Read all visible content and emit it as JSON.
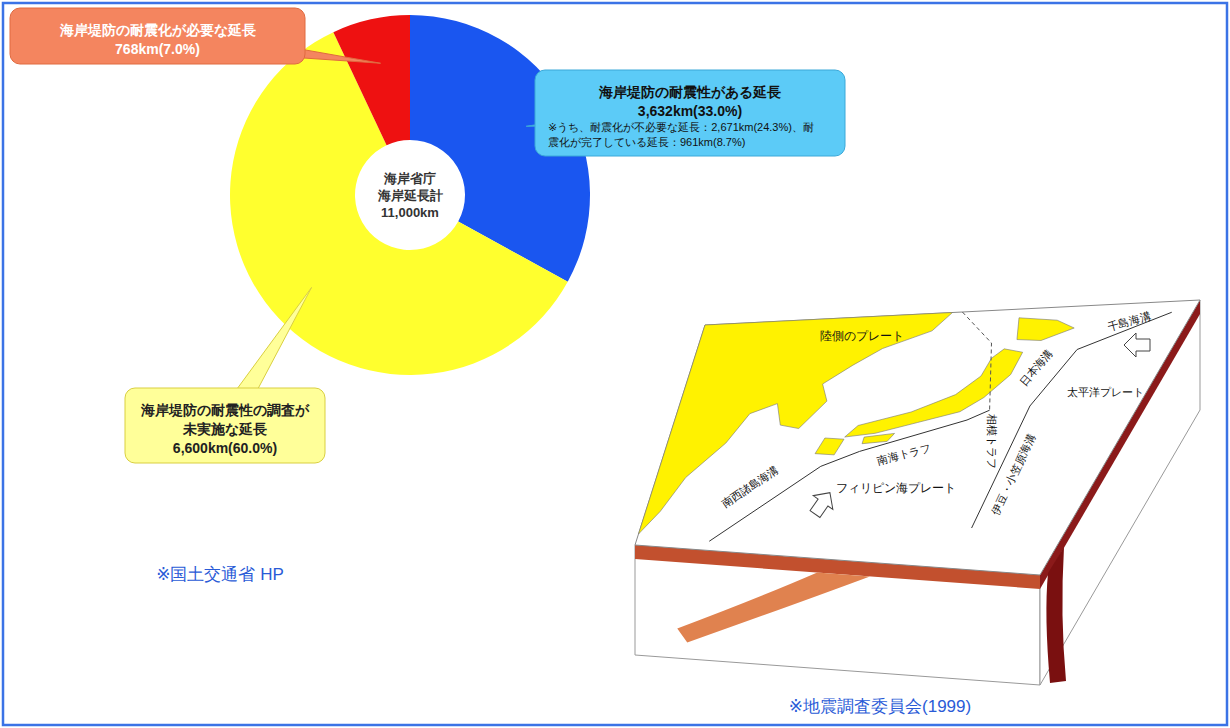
{
  "chart_data": {
    "type": "donut",
    "categories": [
      "海岸堤防の耐震性がある延長",
      "海岸堤防の耐震性の調査が未実施な延長",
      "海岸堤防の耐震化が必要な延長"
    ],
    "values": [
      33.0,
      60.0,
      7.0
    ],
    "value_labels": [
      "3,632km(33.0%)",
      "6,600km(60.0%)",
      "768km(7.0%)"
    ],
    "colors": [
      "#1a56f0",
      "#ffff2e",
      "#ee1111"
    ],
    "data_labels": true,
    "note": "※うち、耐震化が不必要な延長：2,671km(24.3%)、耐震化が完了している延長：961km(8.7%)",
    "center_text": [
      "海岸省庁",
      "海岸延長計",
      "11,000km"
    ],
    "source": "※国土交通省 HP"
  },
  "diagram": {
    "plates": {
      "continental": "陸側のプレート",
      "pacific": "太平洋プレート",
      "philippine": "フィリピン海プレート"
    },
    "trenches": {
      "kuril": "千島海溝",
      "japan": "日本海溝",
      "izu_bonin": "伊豆・小笠原海溝",
      "sagami": "相模トラフ",
      "nankai": "南海トラフ",
      "ryukyu": "南西諸島海溝"
    },
    "source": "※地震調査委員会(1999)"
  }
}
